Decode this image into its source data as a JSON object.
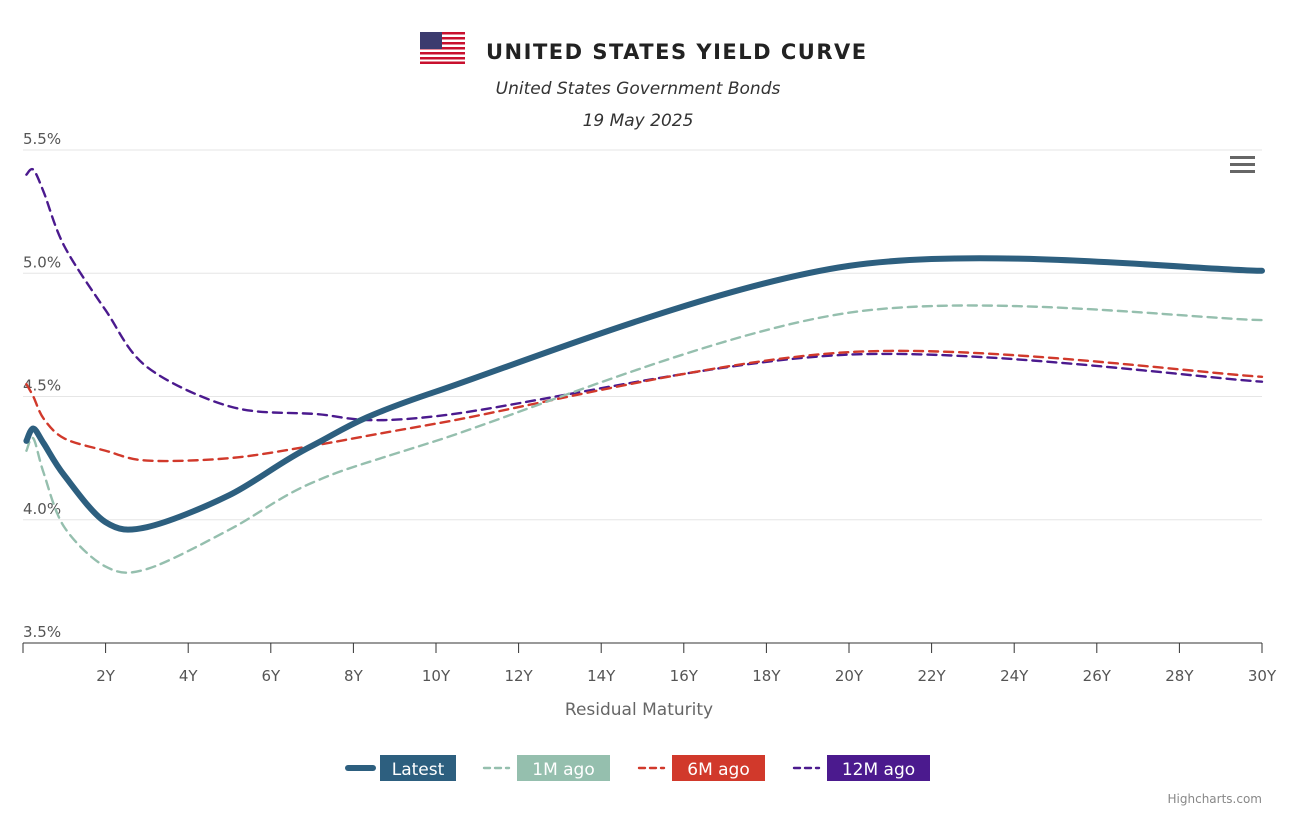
{
  "chart_data": {
    "type": "line",
    "title": "UNITED STATES YIELD CURVE",
    "subtitle": "United States Government Bonds",
    "date": "19 May 2025",
    "xlabel": "Residual Maturity",
    "ylabel": "",
    "x_tick_labels": [
      "2Y",
      "4Y",
      "6Y",
      "8Y",
      "10Y",
      "12Y",
      "14Y",
      "16Y",
      "18Y",
      "20Y",
      "22Y",
      "24Y",
      "26Y",
      "28Y",
      "30Y"
    ],
    "y_tick_labels": [
      "3.5%",
      "4.0%",
      "4.5%",
      "5.0%",
      "5.5%"
    ],
    "xlim": [
      0,
      30
    ],
    "ylim": [
      3.5,
      5.5
    ],
    "grid": true,
    "legend_position": "bottom-center",
    "credits": "Highcharts.com",
    "series": [
      {
        "name": "Latest",
        "color": "#2d5f7f",
        "dash": "solid",
        "x": [
          0.083,
          0.25,
          0.5,
          1,
          2,
          3,
          5,
          7,
          10,
          20,
          30
        ],
        "y": [
          4.32,
          4.37,
          4.31,
          4.18,
          3.99,
          3.97,
          4.1,
          4.3,
          4.52,
          5.03,
          5.01
        ]
      },
      {
        "name": "1M ago",
        "color": "#95bfae",
        "dash": "dashed",
        "x": [
          0.083,
          0.25,
          0.5,
          1,
          2,
          3,
          5,
          7,
          10,
          20,
          30
        ],
        "y": [
          4.28,
          4.33,
          4.19,
          3.97,
          3.81,
          3.8,
          3.96,
          4.15,
          4.32,
          4.84,
          4.81
        ]
      },
      {
        "name": "6M ago",
        "color": "#d1392b",
        "dash": "dashed",
        "x": [
          0.083,
          0.25,
          0.5,
          1,
          2,
          3,
          5,
          7,
          10,
          20,
          30
        ],
        "y": [
          4.55,
          4.5,
          4.41,
          4.33,
          4.28,
          4.24,
          4.25,
          4.3,
          4.39,
          4.68,
          4.58
        ]
      },
      {
        "name": "12M ago",
        "color": "#4b1a8e",
        "dash": "dashed",
        "x": [
          0.083,
          0.25,
          0.5,
          1,
          2,
          3,
          5,
          7,
          10,
          20,
          30
        ],
        "y": [
          5.4,
          5.42,
          5.33,
          5.11,
          4.85,
          4.62,
          4.46,
          4.43,
          4.42,
          4.67,
          4.56
        ]
      }
    ]
  },
  "ui": {
    "flag_icon": "us-flag-icon",
    "menu_icon": "hamburger-menu-icon"
  }
}
